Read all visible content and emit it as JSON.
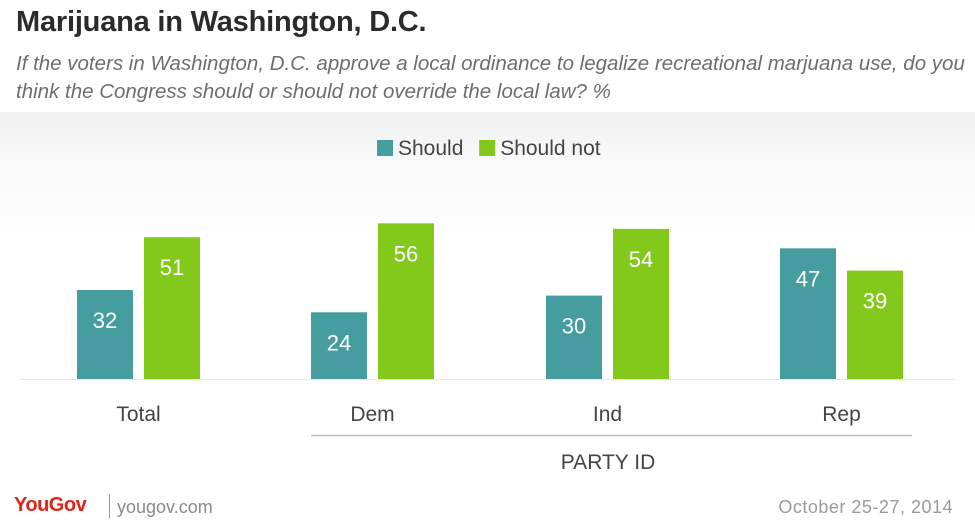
{
  "header": {
    "title": "Marijuana in Washington, D.C.",
    "subtitle": "If the voters in Washington, D.C. approve a local ordinance to legalize recreational marjuana use, do you think the Congress should or should not override the local law? %"
  },
  "chart_data": {
    "type": "bar",
    "categories": [
      "Total",
      "Dem",
      "Ind",
      "Rep"
    ],
    "series": [
      {
        "name": "Should",
        "color": "#469da0",
        "values": [
          32,
          24,
          30,
          47
        ]
      },
      {
        "name": "Should not",
        "color": "#83c91b",
        "values": [
          51,
          56,
          54,
          39
        ]
      }
    ],
    "group_label": "PARTY ID",
    "ylim": [
      0,
      60
    ],
    "legend_position": "top-center",
    "data_labels": true,
    "grid": false
  },
  "footer": {
    "brand": "YouGov",
    "site": "yougov.com",
    "date": "October 25-27, 2014"
  }
}
